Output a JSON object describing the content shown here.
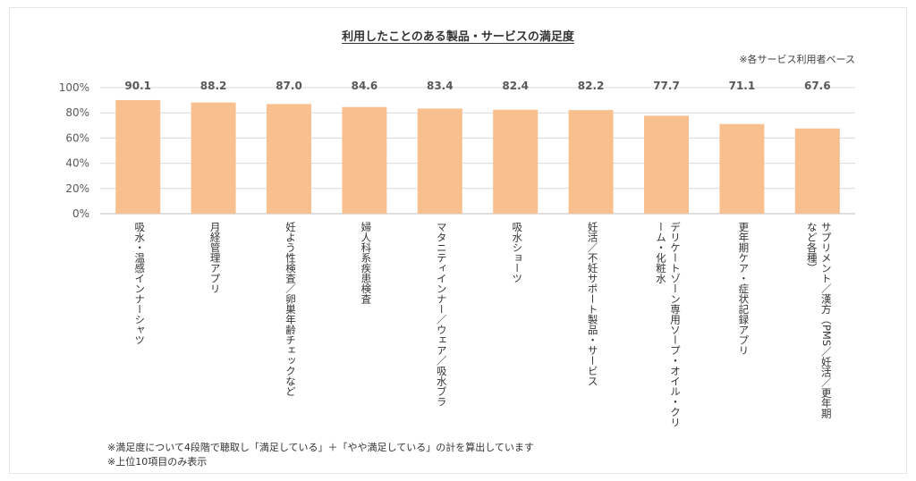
{
  "title": "利用したことのある製品・サービスの満足度",
  "base_note": "※各サービス利用者ベース",
  "footnotes": [
    "※満足度について4段階で聴取し「満足している」＋「やや満足している」の計を算出しています",
    "※上位10項目のみ表示"
  ],
  "colors": {
    "bar": "#f9c08f",
    "grid": "#d9d9d9",
    "axis": "#bfbfbf"
  },
  "chart_data": {
    "type": "bar",
    "title": "利用したことのある製品・サービスの満足度",
    "ylim": [
      0,
      100
    ],
    "yticks": [
      "0%",
      "20%",
      "40%",
      "60%",
      "80%",
      "100%"
    ],
    "grid": true,
    "categories": [
      "吸水・温感インナーシャツ",
      "月経管理アプリ",
      "妊よう性検査／卵巣年齢チェックなど",
      "婦人科系疾患検査",
      "マタニティインナー／ウェア／吸水ブラ",
      "吸水ショーツ",
      "妊活／不妊サポート製品・サービス",
      "デリケートゾーン専用ソープ・オイル・クリーム・化粧水",
      "更年期ケア・症状記録アプリ",
      "サプリメント／漢方（PMS／妊活／更年期など各種）"
    ],
    "values": [
      90.1,
      88.2,
      87.0,
      84.6,
      83.4,
      82.4,
      82.2,
      77.7,
      71.1,
      67.6
    ],
    "labels": [
      "90.1",
      "88.2",
      "87.0",
      "84.6",
      "83.4",
      "82.4",
      "82.2",
      "77.7",
      "71.1",
      "67.6"
    ]
  }
}
